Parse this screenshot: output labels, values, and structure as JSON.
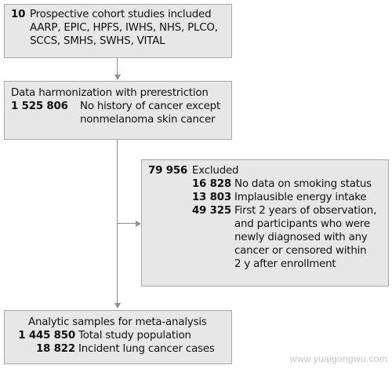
{
  "box1": {
    "count": "10",
    "text": "Prospective cohort studies included",
    "studies": [
      "AARP, EPIC, HPFS, IWHS, NHS, PLCO,",
      "SCCS, SMHS, SWHS, VITAL"
    ]
  },
  "box2": {
    "title": "Data harmonization with prerestriction",
    "count": "1 525 806",
    "lines": [
      "No history of cancer except",
      "nonmelanoma skin cancer"
    ]
  },
  "excluded": {
    "count": "79 956",
    "label": "Excluded",
    "items": [
      {
        "count": "16 828",
        "lines": [
          "No data on smoking status"
        ]
      },
      {
        "count": "13 803",
        "lines": [
          "Implausible energy intake"
        ]
      },
      {
        "count": "49 325",
        "lines": [
          "First 2 years of observation,",
          "and participants who were",
          "newly diagnosed with any",
          "cancer or censored within",
          "2 y after enrollment"
        ]
      }
    ]
  },
  "box4": {
    "title": "Analytic samples for meta-analysis",
    "rows": [
      {
        "count": "1 445 850",
        "label": "Total study population"
      },
      {
        "count": "18 822",
        "label": "Incident lung cancer cases"
      }
    ]
  },
  "watermark": "www.yuaigongwu.com"
}
